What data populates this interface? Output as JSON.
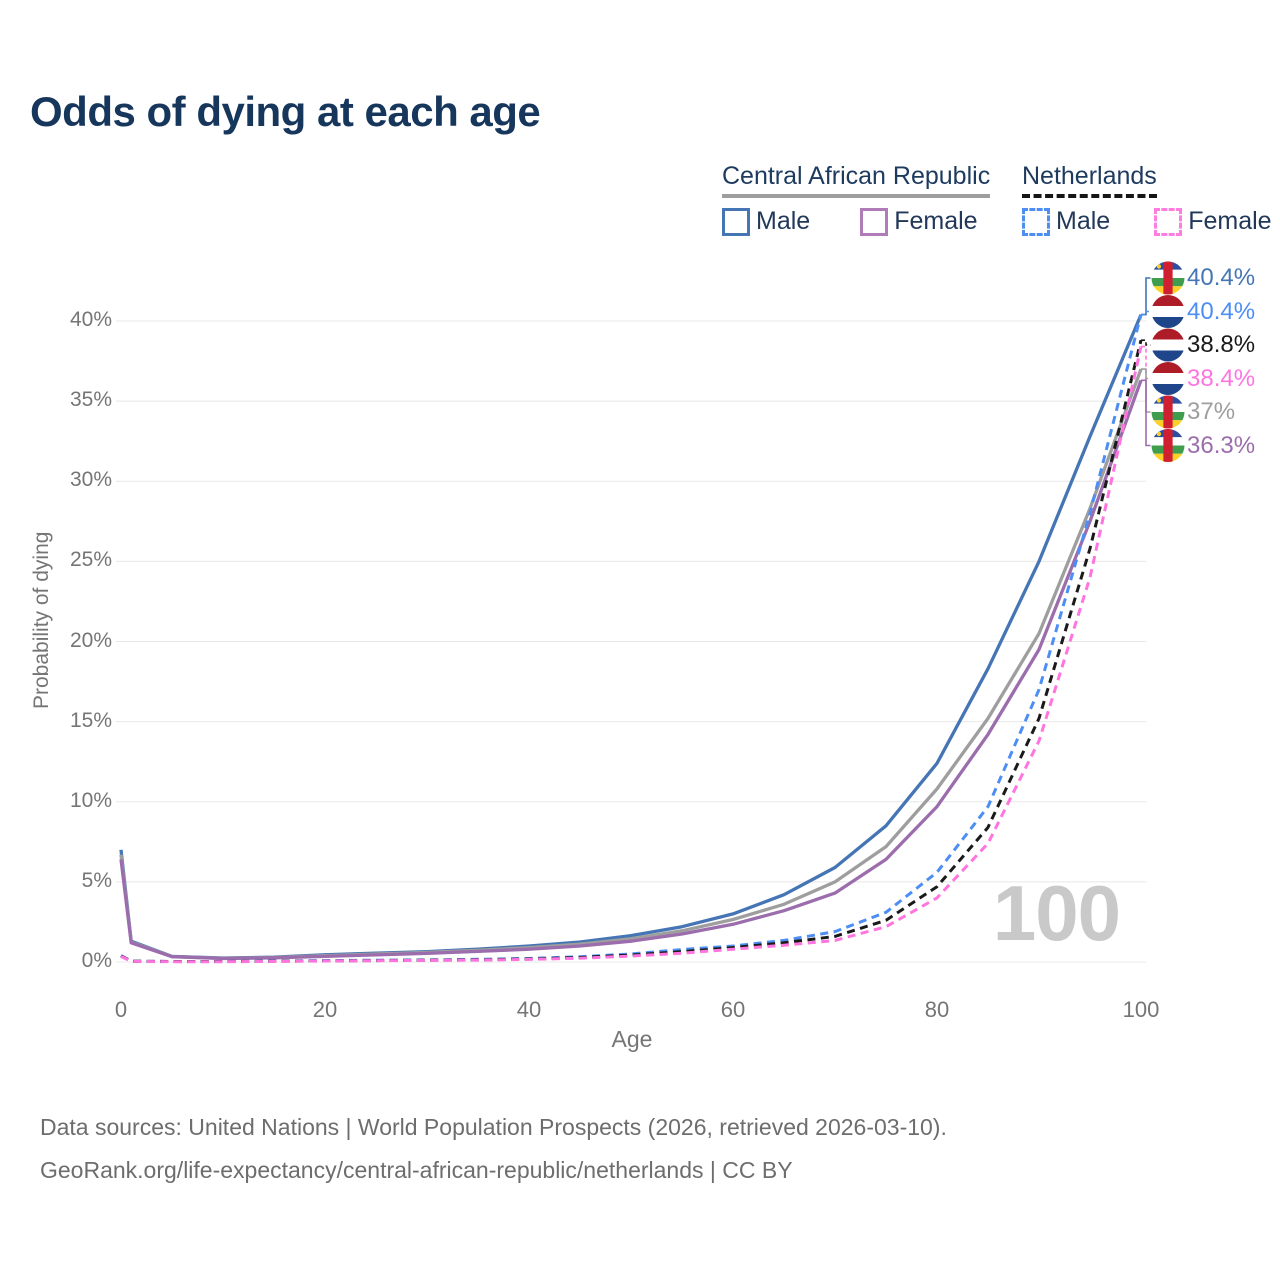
{
  "title": "Odds of dying at each age",
  "legend": {
    "groups": [
      {
        "label": "Central African Republic",
        "line_style": "solid",
        "underline_color": "#9e9e9e",
        "items": [
          {
            "label": "Male",
            "color": "#4575b4",
            "dash": false
          },
          {
            "label": "Female",
            "color": "#b07cb8",
            "dash": false
          }
        ]
      },
      {
        "label": "Netherlands",
        "line_style": "dashed",
        "underline_color": "#161616",
        "items": [
          {
            "label": "Male",
            "color": "#4d8ef5",
            "dash": true
          },
          {
            "label": "Female",
            "color": "#ff7ce0",
            "dash": true
          }
        ]
      }
    ]
  },
  "watermark_age": "100",
  "chart_data": {
    "type": "line",
    "title": "Odds of dying at each age",
    "xlabel": "Age",
    "ylabel": "Probability of dying",
    "x_ticks": [
      0,
      20,
      40,
      60,
      80,
      100
    ],
    "y_ticks_percent": [
      0,
      5,
      10,
      15,
      20,
      25,
      30,
      35,
      40
    ],
    "xlim": [
      0,
      100
    ],
    "ylim_percent": [
      0,
      42
    ],
    "grid": "horizontal",
    "x": [
      0,
      1,
      5,
      10,
      15,
      20,
      25,
      30,
      35,
      40,
      45,
      50,
      55,
      60,
      65,
      70,
      75,
      80,
      85,
      90,
      95,
      100
    ],
    "series": [
      {
        "id": "car-male",
        "name": "Central African Republic Male",
        "flag": "central-african-republic",
        "color": "#4575b4",
        "dash": false,
        "end_label": "40.4%",
        "values": [
          7.0,
          1.3,
          0.35,
          0.25,
          0.3,
          0.45,
          0.55,
          0.65,
          0.8,
          1.0,
          1.25,
          1.65,
          2.2,
          3.0,
          4.2,
          5.9,
          8.5,
          12.4,
          18.3,
          25.0,
          32.8,
          40.4
        ]
      },
      {
        "id": "nl-male",
        "name": "Netherlands Male",
        "flag": "netherlands",
        "color": "#4d8ef5",
        "dash": true,
        "end_label": "40.4%",
        "values": [
          0.4,
          0.05,
          0.03,
          0.03,
          0.06,
          0.09,
          0.11,
          0.13,
          0.17,
          0.22,
          0.33,
          0.5,
          0.78,
          1.0,
          1.35,
          1.9,
          3.1,
          5.6,
          9.7,
          17.0,
          28.0,
          40.4
        ]
      },
      {
        "id": "nl-both",
        "name": "Netherlands Both sexes",
        "flag": "netherlands",
        "color": "#1a1a1a",
        "dash": true,
        "end_label": "38.8%",
        "values": [
          0.38,
          0.05,
          0.03,
          0.03,
          0.05,
          0.07,
          0.09,
          0.11,
          0.14,
          0.19,
          0.28,
          0.43,
          0.65,
          0.9,
          1.2,
          1.6,
          2.6,
          4.7,
          8.4,
          15.2,
          25.8,
          38.8
        ]
      },
      {
        "id": "nl-female",
        "name": "Netherlands Female",
        "flag": "netherlands",
        "color": "#ff74df",
        "dash": true,
        "end_label": "38.4%",
        "values": [
          0.35,
          0.04,
          0.02,
          0.02,
          0.04,
          0.06,
          0.08,
          0.1,
          0.12,
          0.16,
          0.24,
          0.37,
          0.55,
          0.8,
          1.05,
          1.35,
          2.2,
          4.0,
          7.4,
          13.8,
          24.0,
          38.4
        ]
      },
      {
        "id": "car-both",
        "name": "Central African Republic Both sexes",
        "flag": "central-african-republic",
        "color": "#9e9e9e",
        "dash": false,
        "end_label": "37%",
        "values": [
          6.7,
          1.25,
          0.34,
          0.23,
          0.28,
          0.4,
          0.5,
          0.6,
          0.73,
          0.9,
          1.12,
          1.45,
          1.95,
          2.65,
          3.6,
          5.0,
          7.2,
          10.8,
          15.2,
          20.5,
          28.3,
          37.0
        ]
      },
      {
        "id": "car-female",
        "name": "Central African Republic Female",
        "flag": "central-african-republic",
        "color": "#9c6dad",
        "dash": false,
        "end_label": "36.3%",
        "values": [
          6.4,
          1.2,
          0.33,
          0.22,
          0.26,
          0.35,
          0.44,
          0.54,
          0.66,
          0.8,
          1.0,
          1.3,
          1.75,
          2.35,
          3.2,
          4.3,
          6.4,
          9.7,
          14.2,
          19.5,
          27.5,
          36.3
        ]
      }
    ]
  },
  "footer": {
    "line1": "Data sources: United Nations | World Population Prospects (2026, retrieved 2026-03-10).",
    "line2": "GeoRank.org/life-expectancy/central-african-republic/netherlands | CC BY"
  }
}
